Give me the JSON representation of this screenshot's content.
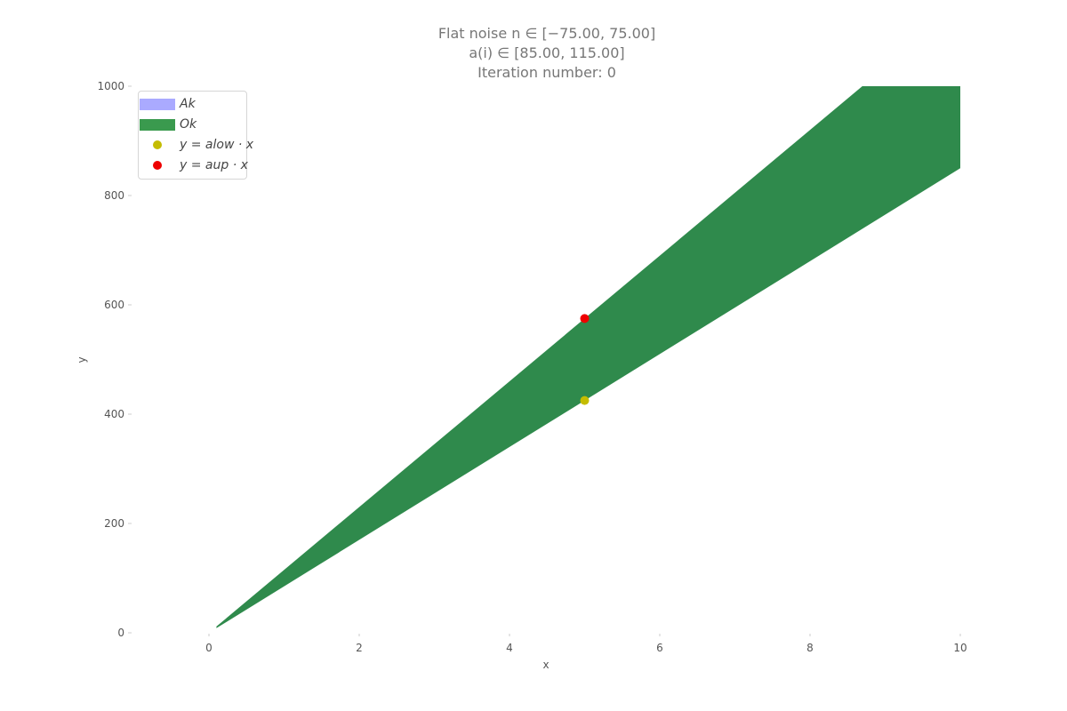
{
  "chart_data": {
    "type": "area",
    "title_lines": [
      "Flat noise n ∈ [−75.00, 75.00]",
      "a(i) ∈ [85.00, 115.00]",
      "Iteration number: 0"
    ],
    "xlabel": "x",
    "ylabel": "y",
    "xlim": [
      -0.35,
      10
    ],
    "ylim": [
      0,
      1000
    ],
    "x_ticks": [
      0,
      2,
      4,
      6,
      8,
      10
    ],
    "y_ticks": [
      0,
      200,
      400,
      600,
      800,
      1000
    ],
    "grid": false,
    "legend_position": "top-left",
    "legend": [
      {
        "label": "A_k",
        "display": "Ak",
        "kind": "patch",
        "color": "#aaaaff"
      },
      {
        "label": "O_k",
        "display": "Ok",
        "kind": "patch",
        "color": "#3a9a4e"
      },
      {
        "label": "y = a_low · x",
        "display": "y = alow · x",
        "kind": "marker",
        "color": "#c4bc00"
      },
      {
        "label": "y = a_up · x",
        "display": "y = aup · x",
        "kind": "marker",
        "color": "#ee0000"
      }
    ],
    "region_Ok": {
      "color": "#2f8a4c",
      "upper_slope": 115,
      "lower_slope": 85,
      "x_start": 0.1,
      "x_end": 10
    },
    "points": [
      {
        "series": "y = a_up · x",
        "x": 5,
        "y": 575,
        "color": "#ee0000"
      },
      {
        "series": "y = a_low · x",
        "x": 5,
        "y": 425,
        "color": "#c4bc00"
      }
    ]
  }
}
